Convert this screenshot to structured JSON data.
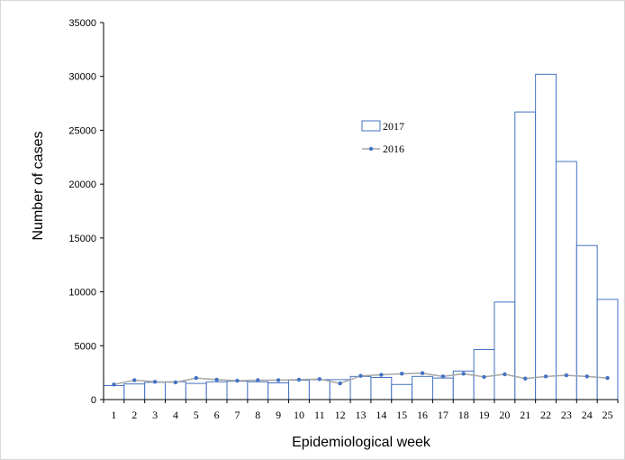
{
  "chart_data": {
    "type": "bar",
    "xlabel": "Epidemiological week",
    "ylabel": "Number of cases",
    "ylim": [
      0,
      35000
    ],
    "yticks": [
      0,
      5000,
      10000,
      15000,
      20000,
      25000,
      30000,
      35000
    ],
    "grid": false,
    "legend_position": "upper-middle",
    "categories": [
      "1",
      "2",
      "3",
      "4",
      "5",
      "6",
      "7",
      "8",
      "9",
      "10",
      "11",
      "12",
      "13",
      "14",
      "15",
      "16",
      "17",
      "18",
      "19",
      "20",
      "21",
      "22",
      "23",
      "24",
      "25"
    ],
    "series": [
      {
        "name": "2017",
        "type": "bar",
        "color": "#4472c4",
        "fill": "#ffffff",
        "values": [
          1300,
          1450,
          1600,
          1650,
          1500,
          1650,
          1700,
          1650,
          1550,
          1800,
          1850,
          1850,
          2150,
          2050,
          1400,
          2150,
          2000,
          2650,
          4650,
          9050,
          26700,
          30200,
          22100,
          14300,
          9300
        ]
      },
      {
        "name": "2016",
        "type": "line",
        "color": "#4472c4",
        "line_color": "#a6a6a6",
        "values": [
          1400,
          1800,
          1650,
          1600,
          2000,
          1850,
          1750,
          1800,
          1800,
          1850,
          1900,
          1500,
          2200,
          2300,
          2400,
          2450,
          2150,
          2400,
          2100,
          2350,
          1950,
          2150,
          2250,
          2150,
          2000
        ]
      }
    ]
  }
}
